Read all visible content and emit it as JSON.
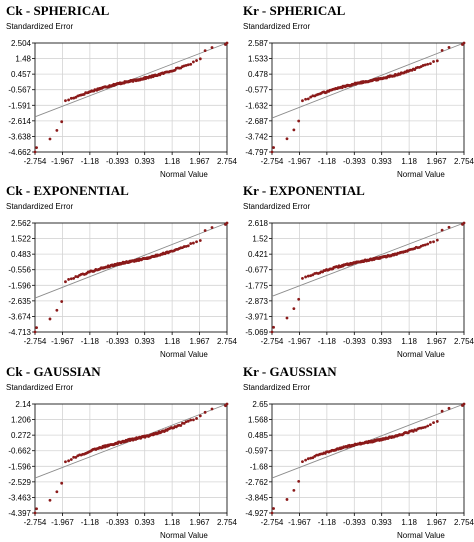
{
  "chart_data": [
    {
      "type": "scatter",
      "title": "Ck - SPHERICAL",
      "ylabel": "Standardized Error",
      "xlabel": "Normal Value",
      "xticks": [
        "-2.754",
        "-1.967",
        "-1.18",
        "-0.393",
        "0.393",
        "1.18",
        "1.967",
        "2.754"
      ],
      "yticks": [
        "2.504",
        "1.48",
        "0.457",
        "-0.567",
        "-1.591",
        "-2.614",
        "-3.638",
        "-4.662"
      ],
      "ylim": [
        -4.662,
        2.504
      ],
      "reference_line": [
        [
          -2.754,
          -2.35
        ],
        [
          2.754,
          2.504
        ]
      ],
      "grid": true
    },
    {
      "type": "scatter",
      "title": "Kr - SPHERICAL",
      "ylabel": "Standardized Error",
      "xlabel": "Normal Value",
      "xticks": [
        "-2.754",
        "-1.967",
        "-1.18",
        "-0.393",
        "0.393",
        "1.18",
        "1.967",
        "2.754"
      ],
      "yticks": [
        "2.587",
        "1.533",
        "0.478",
        "-0.577",
        "-1.632",
        "-2.687",
        "-3.742",
        "-4.797"
      ],
      "ylim": [
        -4.797,
        2.587
      ],
      "reference_line": [
        [
          -2.754,
          -2.5
        ],
        [
          2.754,
          2.587
        ]
      ],
      "grid": true
    },
    {
      "type": "scatter",
      "title": "Ck - EXPONENTIAL",
      "ylabel": "Standardized Error",
      "xlabel": "Normal Value",
      "xticks": [
        "-2.754",
        "-1.967",
        "-1.18",
        "-0.393",
        "0.393",
        "1.18",
        "1.967",
        "2.754"
      ],
      "yticks": [
        "2.562",
        "1.522",
        "0.483",
        "-0.556",
        "-1.596",
        "-2.635",
        "-3.674",
        "-4.713"
      ],
      "ylim": [
        -4.713,
        2.562
      ],
      "reference_line": [
        [
          -2.754,
          -2.45
        ],
        [
          2.754,
          2.562
        ]
      ],
      "grid": true
    },
    {
      "type": "scatter",
      "title": "Kr - EXPONENTIAL",
      "ylabel": "Standardized Error",
      "xlabel": "Normal Value",
      "xticks": [
        "-2.754",
        "-1.967",
        "-1.18",
        "-0.393",
        "0.393",
        "1.18",
        "1.967",
        "2.754"
      ],
      "yticks": [
        "2.618",
        "1.52",
        "0.421",
        "-0.677",
        "-1.775",
        "-2.873",
        "-3.971",
        "-5.069"
      ],
      "ylim": [
        -5.069,
        2.618
      ],
      "reference_line": [
        [
          -2.754,
          -2.55
        ],
        [
          2.754,
          2.618
        ]
      ],
      "grid": true
    },
    {
      "type": "scatter",
      "title": "Ck - GAUSSIAN",
      "ylabel": "Standardized Error",
      "xlabel": "Normal Value",
      "xticks": [
        "-2.754",
        "-1.967",
        "-1.18",
        "-0.393",
        "0.393",
        "1.18",
        "1.967",
        "2.754"
      ],
      "yticks": [
        "2.14",
        "1.206",
        "0.272",
        "-0.662",
        "-1.596",
        "-2.529",
        "-3.463",
        "-4.397"
      ],
      "ylim": [
        -4.397,
        2.14
      ],
      "reference_line": [
        [
          -2.754,
          -2.3
        ],
        [
          2.754,
          2.14
        ]
      ],
      "grid": true
    },
    {
      "type": "scatter",
      "title": "Kr - GAUSSIAN",
      "ylabel": "Standardized Error",
      "xlabel": "Normal Value",
      "xticks": [
        "-2.754",
        "-1.967",
        "-1.18",
        "-0.393",
        "0.393",
        "1.18",
        "1.967",
        "2.754"
      ],
      "yticks": [
        "2.65",
        "1.568",
        "0.485",
        "-0.597",
        "-1.68",
        "-2.762",
        "-3.845",
        "-4.927"
      ],
      "ylim": [
        -4.927,
        2.65
      ],
      "reference_line": [
        [
          -2.754,
          -2.5
        ],
        [
          2.754,
          2.65
        ]
      ],
      "grid": true
    }
  ],
  "colors": {
    "points": "#8b1a1a",
    "reference_line": "#8c8c8c",
    "grid": "#d4d4d4",
    "axis": "#000000"
  }
}
